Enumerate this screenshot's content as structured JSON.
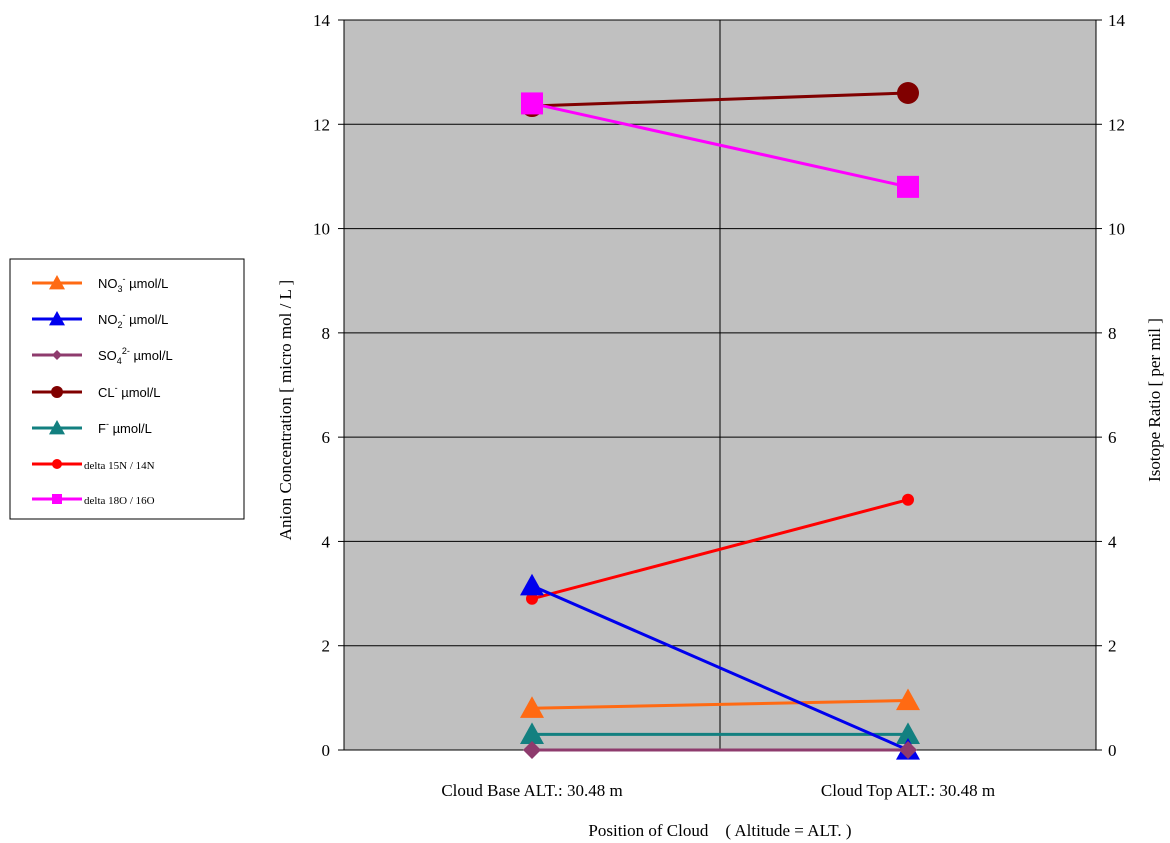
{
  "chart_data": {
    "type": "line",
    "categories": [
      "Cloud Base ALT.: 30.48 m",
      "Cloud Top ALT.: 30.48 m"
    ],
    "xlabel": "Position of Cloud　( Altitude = ALT. )",
    "ylabel": "Anion Concentration [ micro mol / L ]",
    "y2label": "Isotope Ratio [ per mil ]",
    "ylim": [
      0,
      14
    ],
    "y2lim": [
      0,
      14
    ],
    "yticks": [
      "0",
      "2",
      "4",
      "6",
      "8",
      "10",
      "12",
      "14"
    ],
    "y2ticks": [
      "0",
      "2",
      "4",
      "6",
      "8",
      "10",
      "12",
      "14"
    ],
    "grid": true,
    "legend_position": "left",
    "series": [
      {
        "legend": {
          "base": "NO",
          "sub": "3",
          "sup": "-",
          "unit": " µmol/L"
        },
        "values": [
          0.8,
          0.95
        ],
        "color": "#ff6a13",
        "marker": "triangle",
        "axis": "left"
      },
      {
        "legend": {
          "base": "NO",
          "sub": "2",
          "sup": "-",
          "unit": " µmol/L"
        },
        "values": [
          3.15,
          0.0
        ],
        "color": "#0000ee",
        "marker": "triangle",
        "axis": "left"
      },
      {
        "legend": {
          "base": "SO",
          "sub": "4",
          "sup": "2-",
          "unit": " µmol/L"
        },
        "values": [
          0.0,
          0.0
        ],
        "color": "#8e3b6d",
        "marker": "diamond",
        "axis": "left"
      },
      {
        "legend": {
          "base": "CL",
          "sub": "",
          "sup": "-",
          "unit": " µmol/L"
        },
        "values": [
          12.35,
          12.6
        ],
        "color": "#800000",
        "marker": "circle",
        "axis": "left"
      },
      {
        "legend": {
          "base": "F",
          "sub": "",
          "sup": "-",
          "unit": " µmol/L"
        },
        "values": [
          0.3,
          0.3
        ],
        "color": "#138080",
        "marker": "triangle",
        "axis": "left"
      },
      {
        "legend": {
          "base": "delta 15N / 14N",
          "sub": "",
          "sup": "",
          "unit": ""
        },
        "values": [
          2.9,
          4.8
        ],
        "color": "#ff0000",
        "marker": "smallcircle",
        "axis": "right"
      },
      {
        "legend": {
          "base": "delta 18O / 16O",
          "sub": "",
          "sup": "",
          "unit": ""
        },
        "values": [
          12.4,
          10.8
        ],
        "color": "#ff00ff",
        "marker": "square",
        "axis": "right"
      }
    ]
  }
}
